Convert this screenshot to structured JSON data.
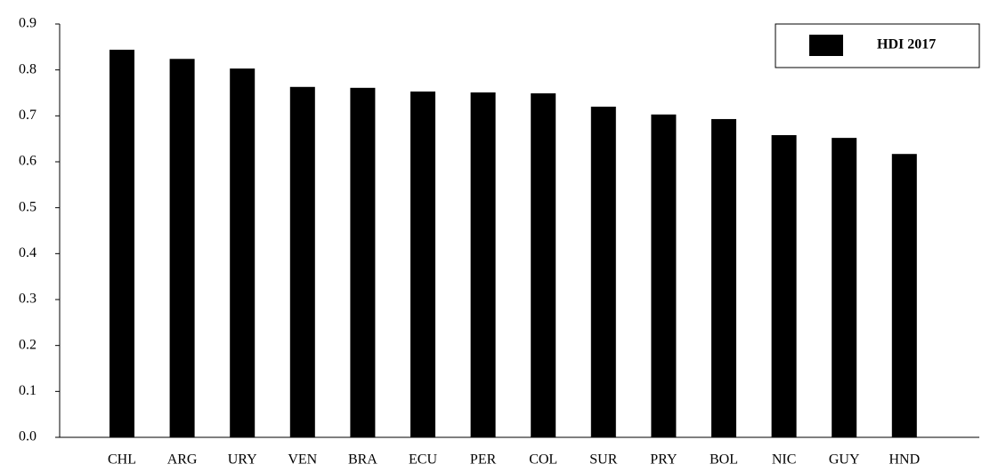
{
  "chart_data": {
    "type": "bar",
    "categories": [
      "CHL",
      "ARG",
      "URY",
      "VEN",
      "BRA",
      "ECU",
      "PER",
      "COL",
      "SUR",
      "PRY",
      "BOL",
      "NIC",
      "GUY",
      "HND"
    ],
    "series": [
      {
        "name": "HDI 2017",
        "color": "#000000",
        "values": [
          0.844,
          0.824,
          0.803,
          0.763,
          0.761,
          0.753,
          0.751,
          0.749,
          0.72,
          0.703,
          0.693,
          0.658,
          0.652,
          0.617
        ]
      }
    ],
    "ylim": [
      0,
      0.9
    ],
    "yticks": [
      {
        "value": 0,
        "label": "0.0"
      },
      0.1,
      0.2,
      0.3,
      0.4,
      0.5,
      0.6,
      0.7,
      0.8,
      0.9
    ],
    "grid": false,
    "legend": "top-right"
  }
}
